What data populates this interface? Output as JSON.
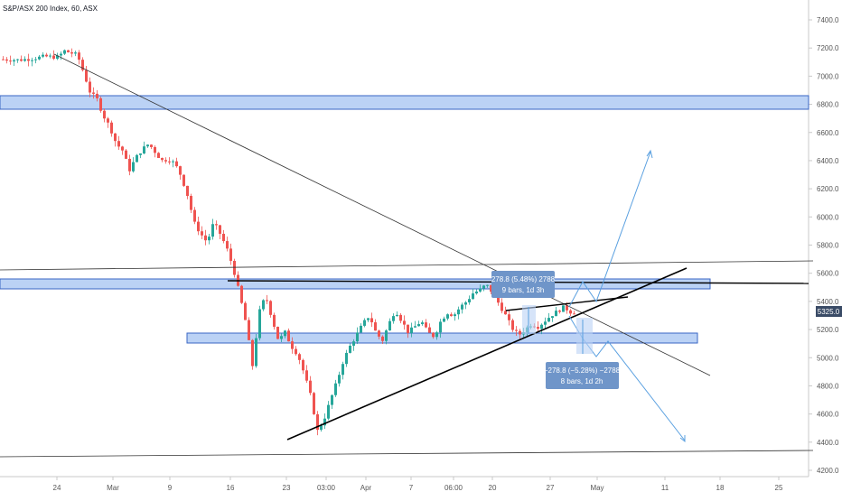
{
  "header": {
    "symbol_label": "S&P/ASX 200 Index, 60, ASX"
  },
  "chart_data": {
    "type": "candlestick",
    "timeframe": "60",
    "exchange": "ASX",
    "ylim": [
      4150,
      7550
    ],
    "y_ticks": [
      "7400.0",
      "7200.0",
      "7000.0",
      "6800.0",
      "6600.0",
      "6400.0",
      "6200.0",
      "6000.0",
      "5800.0",
      "5600.0",
      "5400.0",
      "5200.0",
      "5000.0",
      "4800.0",
      "4600.0",
      "4400.0",
      "4200.0"
    ],
    "x_ticks": [
      "24",
      "Mar",
      "9",
      "16",
      "23",
      "03:00",
      "Apr",
      "7",
      "06:00",
      "20",
      "27",
      "May",
      "11",
      "18",
      "25"
    ],
    "last_price": "5325.0",
    "grid": false,
    "price_path": [
      [
        0,
        7120
      ],
      [
        3,
        7115
      ],
      [
        5,
        7125
      ],
      [
        7,
        7140
      ],
      [
        9,
        7135
      ],
      [
        10,
        7180
      ],
      [
        11,
        7165
      ],
      [
        12,
        7150
      ],
      [
        13,
        7020
      ],
      [
        14,
        6880
      ],
      [
        15,
        6840
      ],
      [
        16,
        6720
      ],
      [
        17,
        6640
      ],
      [
        18,
        6520
      ],
      [
        19,
        6470
      ],
      [
        20,
        6330
      ],
      [
        21,
        6420
      ],
      [
        22,
        6480
      ],
      [
        23,
        6520
      ],
      [
        24,
        6460
      ],
      [
        25,
        6400
      ],
      [
        26,
        6410
      ],
      [
        27,
        6380
      ],
      [
        28,
        6290
      ],
      [
        29,
        6150
      ],
      [
        30,
        5960
      ],
      [
        31,
        5880
      ],
      [
        32,
        5820
      ],
      [
        33,
        5960
      ],
      [
        34,
        5880
      ],
      [
        35,
        5780
      ],
      [
        36,
        5640
      ],
      [
        37,
        5450
      ],
      [
        38,
        5240
      ],
      [
        39,
        4940
      ],
      [
        40,
        5320
      ],
      [
        41,
        5440
      ],
      [
        42,
        5280
      ],
      [
        43,
        5120
      ],
      [
        44,
        5180
      ],
      [
        45,
        5080
      ],
      [
        46,
        5020
      ],
      [
        47,
        4880
      ],
      [
        48,
        4720
      ],
      [
        49,
        4480
      ],
      [
        50,
        4560
      ],
      [
        51,
        4700
      ],
      [
        52,
        4830
      ],
      [
        53,
        4980
      ],
      [
        54,
        5080
      ],
      [
        55,
        5160
      ],
      [
        56,
        5240
      ],
      [
        57,
        5300
      ],
      [
        58,
        5180
      ],
      [
        59,
        5120
      ],
      [
        60,
        5240
      ],
      [
        61,
        5340
      ],
      [
        62,
        5260
      ],
      [
        63,
        5180
      ],
      [
        64,
        5220
      ],
      [
        65,
        5260
      ],
      [
        66,
        5180
      ],
      [
        67,
        5150
      ],
      [
        68,
        5260
      ],
      [
        69,
        5320
      ],
      [
        70,
        5300
      ],
      [
        71,
        5360
      ],
      [
        72,
        5400
      ],
      [
        73,
        5460
      ],
      [
        74,
        5480
      ],
      [
        75,
        5520
      ],
      [
        76,
        5460
      ],
      [
        77,
        5380
      ],
      [
        78,
        5300
      ],
      [
        79,
        5210
      ],
      [
        80,
        5160
      ],
      [
        81,
        5200
      ],
      [
        82,
        5240
      ],
      [
        83,
        5220
      ],
      [
        84,
        5260
      ],
      [
        85,
        5300
      ],
      [
        86,
        5330
      ],
      [
        87,
        5360
      ],
      [
        88,
        5325
      ]
    ],
    "price_points": 88,
    "levels": {
      "resistance_zone_high": [
        6780,
        6860
      ],
      "resistance_zone_mid": [
        5490,
        5550
      ],
      "support_zone": [
        5120,
        5180
      ],
      "range_top_line": 5530
    },
    "measurements": [
      {
        "text_line1": "278.8 (5.48%) 2788",
        "text_line2": "9 bars, 1d 3h",
        "direction": "up"
      },
      {
        "text_line1": "−278.8 (−5.28%) −2788",
        "text_line2": "8 bars, 1d 2h",
        "direction": "down"
      }
    ],
    "colors": {
      "up_candle": "#26a69a",
      "down_candle": "#ef5350",
      "zone_fill": "#bbd2f5",
      "zone_stroke": "#3a66c4",
      "trendline": "#000000",
      "projection": "#5aa0e0",
      "label_bg": "#6f95c9",
      "price_badge": "#3a4b66",
      "axis_text": "#555555"
    }
  }
}
